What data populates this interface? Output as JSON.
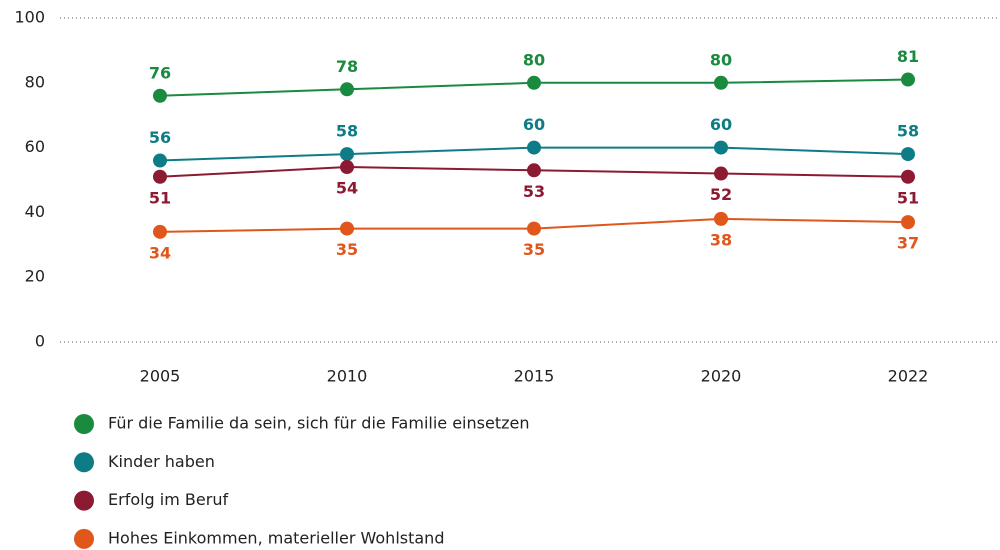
{
  "chart_data": {
    "type": "line",
    "categories": [
      "2005",
      "2010",
      "2015",
      "2020",
      "2022"
    ],
    "series": [
      {
        "name": "Für die Familie da sein, sich für die Familie einsetzen",
        "color": "#1a8a3e",
        "label_position": "above",
        "values": [
          76,
          78,
          80,
          80,
          81
        ]
      },
      {
        "name": "Kinder haben",
        "color": "#0e7c86",
        "label_position": "above",
        "values": [
          56,
          58,
          60,
          60,
          58
        ]
      },
      {
        "name": "Erfolg im Beruf",
        "color": "#8b1a32",
        "label_position": "below",
        "values": [
          51,
          54,
          53,
          52,
          51
        ]
      },
      {
        "name": "Hohes Einkommen, materieller Wohlstand",
        "color": "#e0561b",
        "label_position": "below",
        "values": [
          34,
          35,
          35,
          38,
          37
        ]
      }
    ],
    "ylim": [
      0,
      100
    ],
    "yticks": [
      0,
      20,
      40,
      60,
      80,
      100
    ]
  }
}
